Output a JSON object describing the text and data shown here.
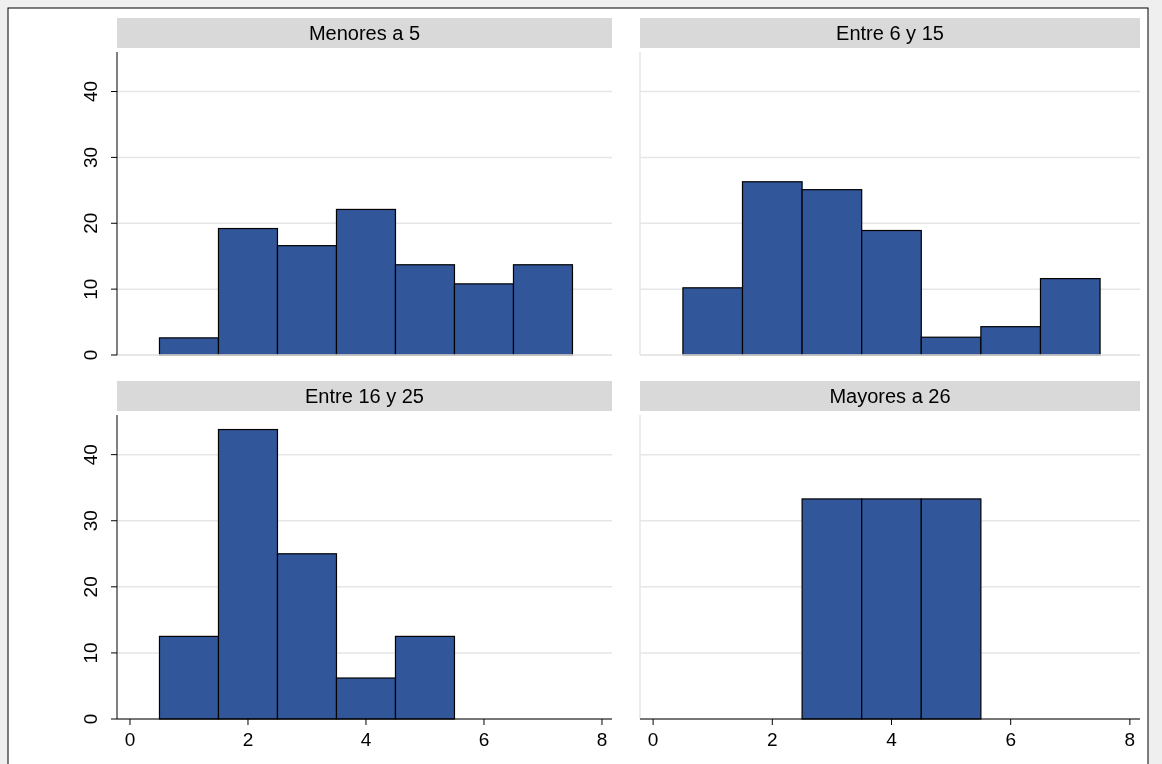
{
  "chart_data": [
    {
      "type": "histogram",
      "title": "Menores a 5",
      "bins": [
        0.5,
        1.5,
        2.5,
        3.5,
        4.5,
        5.5,
        6.5,
        7.5
      ],
      "values": [
        2.6,
        19.2,
        16.6,
        22.1,
        13.7,
        10.8,
        13.7
      ],
      "color": "#31569a",
      "xlim": [
        -0.22,
        8.17
      ],
      "ylim": [
        0,
        46
      ],
      "yticks": [
        0,
        10,
        20,
        30,
        40
      ],
      "grid": "y",
      "tick_labels": "y"
    },
    {
      "type": "histogram",
      "title": "Entre 6 y 15",
      "bins": [
        0.5,
        1.5,
        2.5,
        3.5,
        4.5,
        5.5,
        6.5,
        7.5
      ],
      "values": [
        10.2,
        26.3,
        25.1,
        18.9,
        2.7,
        4.3,
        11.6
      ],
      "color": "#31569a",
      "xlim": [
        -0.22,
        8.17
      ],
      "ylim": [
        0,
        46
      ],
      "yticks": [
        0,
        10,
        20,
        30,
        40
      ],
      "grid": "y",
      "tick_labels": false
    },
    {
      "type": "histogram",
      "title": "Entre 16 y 25",
      "bins": [
        0.5,
        1.5,
        2.5,
        3.5,
        4.5,
        5.5
      ],
      "values": [
        12.5,
        43.8,
        25,
        6.2,
        12.5
      ],
      "color": "#31569a",
      "xlim": [
        -0.22,
        8.17
      ],
      "xticks": [
        0,
        2,
        4,
        6,
        8
      ],
      "ylim": [
        0,
        46
      ],
      "yticks": [
        0,
        10,
        20,
        30,
        40
      ],
      "grid": "y"
    },
    {
      "type": "histogram",
      "title": "Mayores a 26",
      "bins": [
        2.5,
        3.5,
        4.5,
        5.5
      ],
      "values": [
        33.3,
        33.3,
        33.3
      ],
      "color": "#31569a",
      "xlim": [
        -0.22,
        8.17
      ],
      "xticks": [
        0,
        2,
        4,
        6,
        8
      ],
      "ylim": [
        0,
        46
      ],
      "yticks": [
        0,
        10,
        20,
        30,
        40
      ],
      "grid": "y",
      "tick_labels": "x"
    }
  ]
}
